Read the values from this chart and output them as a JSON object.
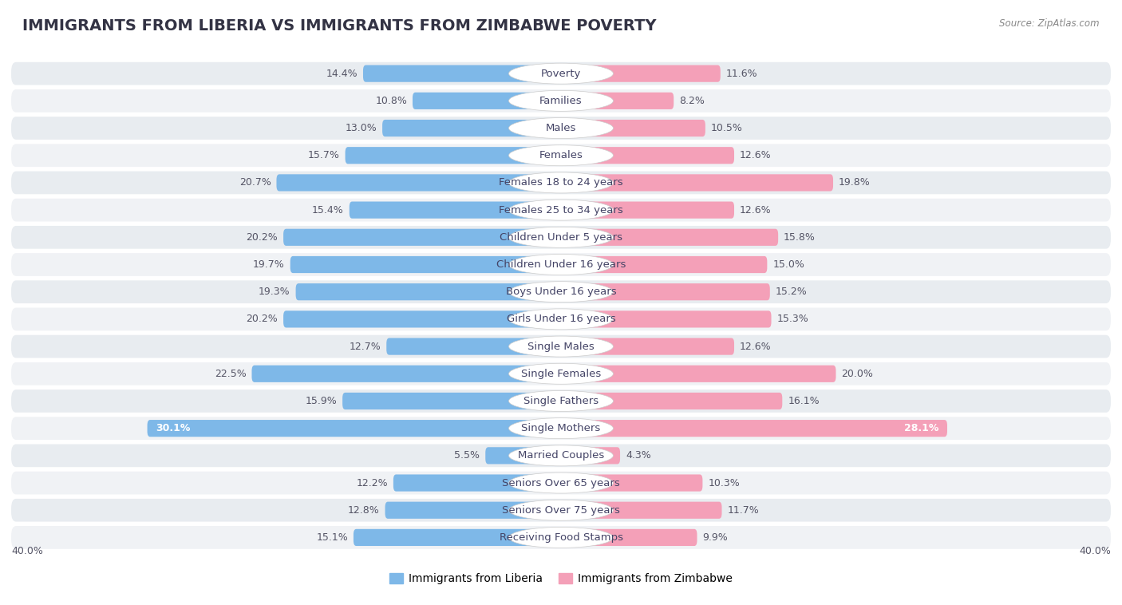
{
  "title": "IMMIGRANTS FROM LIBERIA VS IMMIGRANTS FROM ZIMBABWE POVERTY",
  "source": "Source: ZipAtlas.com",
  "categories": [
    "Poverty",
    "Families",
    "Males",
    "Females",
    "Females 18 to 24 years",
    "Females 25 to 34 years",
    "Children Under 5 years",
    "Children Under 16 years",
    "Boys Under 16 years",
    "Girls Under 16 years",
    "Single Males",
    "Single Females",
    "Single Fathers",
    "Single Mothers",
    "Married Couples",
    "Seniors Over 65 years",
    "Seniors Over 75 years",
    "Receiving Food Stamps"
  ],
  "liberia_values": [
    14.4,
    10.8,
    13.0,
    15.7,
    20.7,
    15.4,
    20.2,
    19.7,
    19.3,
    20.2,
    12.7,
    22.5,
    15.9,
    30.1,
    5.5,
    12.2,
    12.8,
    15.1
  ],
  "zimbabwe_values": [
    11.6,
    8.2,
    10.5,
    12.6,
    19.8,
    12.6,
    15.8,
    15.0,
    15.2,
    15.3,
    12.6,
    20.0,
    16.1,
    28.1,
    4.3,
    10.3,
    11.7,
    9.9
  ],
  "liberia_color": "#7eb8e8",
  "zimbabwe_color": "#f4a0b8",
  "row_bg_color": "#e8ecf0",
  "row_bg_alt_color": "#f0f2f5",
  "liberia_label": "Immigrants from Liberia",
  "zimbabwe_label": "Immigrants from Zimbabwe",
  "x_max": 40.0,
  "bar_height": 0.62,
  "background_color": "#ffffff",
  "title_fontsize": 14,
  "label_fontsize": 9.5,
  "value_fontsize": 9,
  "badge_color": "#ffffff",
  "badge_text_color": "#444466"
}
